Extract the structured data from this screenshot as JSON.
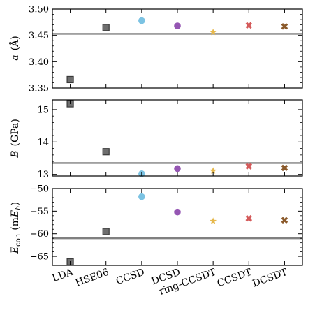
{
  "chart_data": {
    "type": "scatter",
    "categories": [
      "LDA",
      "HSE06",
      "CCSD",
      "DCSD",
      "ring-CCSDT",
      "CCSDT",
      "DCSDT"
    ],
    "series_styles": [
      {
        "marker": "square",
        "color": "#6e6e6e"
      },
      {
        "marker": "square",
        "color": "#6e6e6e"
      },
      {
        "marker": "circle",
        "color": "#7cc3e3"
      },
      {
        "marker": "circle",
        "color": "#9556b3"
      },
      {
        "marker": "star",
        "color": "#e6b84c"
      },
      {
        "marker": "x",
        "color": "#d45a5a"
      },
      {
        "marker": "x",
        "color": "#8b5a2b"
      }
    ],
    "panels": [
      {
        "id": "a",
        "ylabel": "a (Å)",
        "ylabel_main": "a",
        "ylabel_unit": "(Å)",
        "ylim": [
          3.35,
          3.5
        ],
        "yticks": [
          3.35,
          3.4,
          3.45,
          3.5
        ],
        "ytick_labels": [
          "3.35",
          "3.40",
          "3.45",
          "3.50"
        ],
        "values": [
          3.366,
          3.465,
          3.478,
          3.468,
          3.456,
          3.469,
          3.467
        ],
        "reference": 3.453
      },
      {
        "id": "B",
        "ylabel": "B (GPa)",
        "ylabel_main": "B",
        "ylabel_unit": "(GPa)",
        "ylim": [
          12.95,
          15.3
        ],
        "yticks": [
          13,
          14,
          15
        ],
        "ytick_labels": [
          "13",
          "14",
          "15"
        ],
        "values": [
          15.18,
          13.7,
          13.02,
          13.18,
          13.11,
          13.25,
          13.2
        ],
        "reference": 13.35
      },
      {
        "id": "Ecoh",
        "ylabel": "E_coh (mE_h)",
        "ylabel_main": "E",
        "ylabel_sub": "coh",
        "ylabel_unit_pre": "(m",
        "ylabel_unit_E": "E",
        "ylabel_unit_sub": "h",
        "ylabel_unit_post": ")",
        "ylim": [
          -67,
          -50
        ],
        "yticks": [
          -65,
          -60,
          -55,
          -50
        ],
        "ytick_labels": [
          "−65",
          "−60",
          "−55",
          "−50"
        ],
        "values": [
          -66.2,
          -59.5,
          -51.8,
          -55.2,
          -57.2,
          -56.6,
          -57.0
        ],
        "reference": -61.0
      }
    ]
  }
}
